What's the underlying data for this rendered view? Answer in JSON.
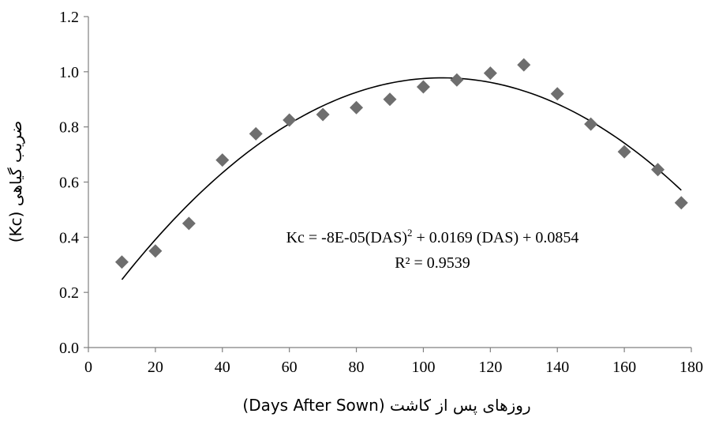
{
  "chart_data": {
    "type": "scatter",
    "title": "",
    "xlabel": "روزهای پس از کاشت (Days After Sown)",
    "ylabel": "ضریب گیاهی (Kc)",
    "xlim": [
      0,
      180
    ],
    "ylim": [
      0.0,
      1.2
    ],
    "xticks": [
      0,
      20,
      40,
      60,
      80,
      100,
      120,
      140,
      160,
      180
    ],
    "xtick_labels": [
      "0",
      "20",
      "40",
      "60",
      "80",
      "100",
      "120",
      "140",
      "160",
      "180"
    ],
    "yticks": [
      0.0,
      0.2,
      0.4,
      0.6,
      0.8,
      1.0,
      1.2
    ],
    "ytick_labels": [
      "0.0",
      "0.2",
      "0.4",
      "0.6",
      "0.8",
      "1.0",
      "1.2"
    ],
    "grid": false,
    "marker": "diamond",
    "marker_color": "#6e6e6e",
    "series": [
      {
        "x": [
          10,
          20,
          30,
          40,
          50,
          60,
          70,
          80,
          90,
          100,
          110,
          120,
          130,
          140,
          150,
          160,
          170,
          177
        ],
        "y": [
          0.31,
          0.35,
          0.45,
          0.68,
          0.775,
          0.825,
          0.845,
          0.87,
          0.9,
          0.945,
          0.97,
          0.995,
          1.025,
          0.92,
          0.81,
          0.71,
          0.645,
          0.525
        ]
      }
    ],
    "trendline": {
      "type": "polynomial",
      "coefficients": [
        -8e-05,
        0.0169,
        0.0854
      ],
      "x_range": [
        10,
        177
      ],
      "equation_prefix": "Kc = -8E-05(DAS)",
      "equation_exponent": "2",
      "equation_suffix": " + 0.0169 (DAS) + 0.0854",
      "r_squared_label": "R² = 0.9539"
    }
  }
}
